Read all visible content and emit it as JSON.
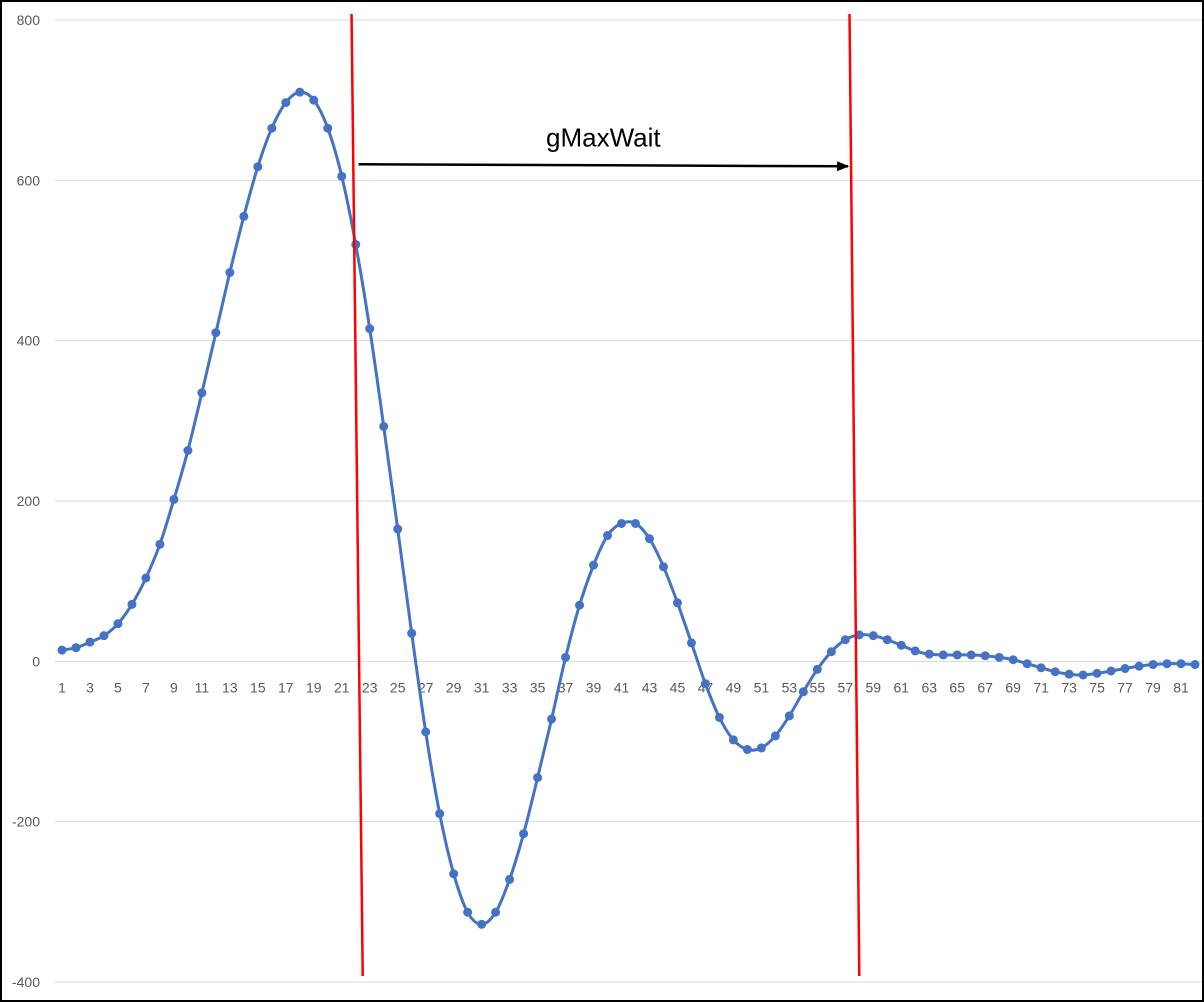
{
  "chart_data": {
    "type": "line",
    "title": "",
    "xlabel": "",
    "ylabel": "",
    "ylim": [
      -400,
      800
    ],
    "y_ticks": [
      -400,
      -200,
      0,
      200,
      400,
      600,
      800
    ],
    "x_tick_labels": [
      "1",
      "3",
      "5",
      "7",
      "9",
      "11",
      "13",
      "15",
      "17",
      "19",
      "21",
      "23",
      "25",
      "27",
      "29",
      "31",
      "33",
      "35",
      "37",
      "39",
      "41",
      "43",
      "45",
      "47",
      "49",
      "51",
      "53",
      "55",
      "57",
      "59",
      "61",
      "63",
      "65",
      "67",
      "69",
      "71",
      "73",
      "75",
      "77",
      "79",
      "81"
    ],
    "grid": "horizontal",
    "legend": "none",
    "series": [
      {
        "color": "#4472C4",
        "marker": "circle",
        "smooth": true,
        "x": [
          1,
          2,
          3,
          4,
          5,
          6,
          7,
          8,
          9,
          10,
          11,
          12,
          13,
          14,
          15,
          16,
          17,
          18,
          19,
          20,
          21,
          22,
          23,
          24,
          25,
          26,
          27,
          28,
          29,
          30,
          31,
          32,
          33,
          34,
          35,
          36,
          37,
          38,
          39,
          40,
          41,
          42,
          43,
          44,
          45,
          46,
          47,
          48,
          49,
          50,
          51,
          52,
          53,
          54,
          55,
          56,
          57,
          58,
          59,
          60,
          61,
          62,
          63,
          64,
          65,
          66,
          67,
          68,
          69,
          70,
          71,
          72,
          73,
          74,
          75,
          76,
          77,
          78,
          79,
          80,
          81,
          82
        ],
        "values": [
          14,
          17,
          24,
          32,
          47,
          71,
          104,
          146,
          202,
          263,
          335,
          410,
          485,
          555,
          617,
          665,
          697,
          710,
          700,
          665,
          605,
          520,
          415,
          293,
          165,
          35,
          -88,
          -190,
          -265,
          -313,
          -328,
          -313,
          -272,
          -215,
          -145,
          -72,
          5,
          70,
          120,
          157,
          172,
          172,
          153,
          118,
          73,
          23,
          -28,
          -70,
          -98,
          -110,
          -108,
          -93,
          -68,
          -38,
          -10,
          12,
          27,
          33,
          32,
          27,
          20,
          13,
          9,
          8,
          8,
          8,
          7,
          5,
          2,
          -3,
          -8,
          -13,
          -16,
          -17,
          -15,
          -12,
          -9,
          -6,
          -4,
          -3,
          -3,
          -4
        ]
      }
    ],
    "annotations": [
      {
        "text": "gMaxWait",
        "type": "arrow",
        "from_x": 22.2,
        "to_x": 57.2,
        "y": 620
      },
      {
        "type": "vertical-line",
        "color": "#FF0000",
        "x_top": 21.7,
        "x_bottom": 22.5
      },
      {
        "type": "vertical-line",
        "color": "#FF0000",
        "x_top": 57.3,
        "x_bottom": 58.0
      }
    ]
  }
}
